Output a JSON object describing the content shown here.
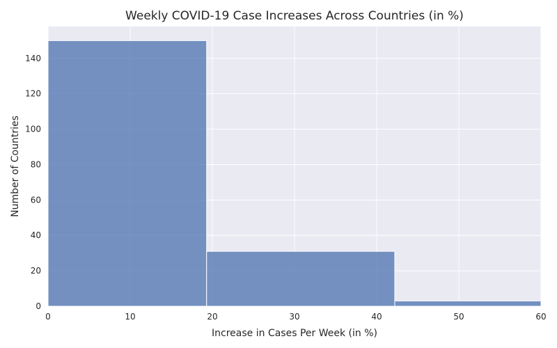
{
  "chart_data": {
    "type": "bar",
    "subtype": "histogram",
    "title": "Weekly COVID-19 Case Increases Across Countries (in %)",
    "xlabel": "Increase in Cases Per Week (in %)",
    "ylabel": "Number of Countries",
    "bins": [
      {
        "start": 0,
        "end": 19.3,
        "count": 150
      },
      {
        "start": 19.3,
        "end": 42.2,
        "count": 31
      },
      {
        "start": 42.2,
        "end": 60,
        "count": 3
      }
    ],
    "xlim": [
      0,
      60
    ],
    "ylim": [
      0,
      158
    ],
    "xticks": [
      0,
      10,
      20,
      30,
      40,
      50,
      60
    ],
    "yticks": [
      0,
      20,
      40,
      60,
      80,
      100,
      120,
      140
    ],
    "grid": true,
    "colors": {
      "background": "#eaeaf2",
      "grid": "#ffffff",
      "bar_fill": "#4c72b0",
      "bar_opacity": 0.75,
      "bar_edge": "#ffffff"
    }
  }
}
